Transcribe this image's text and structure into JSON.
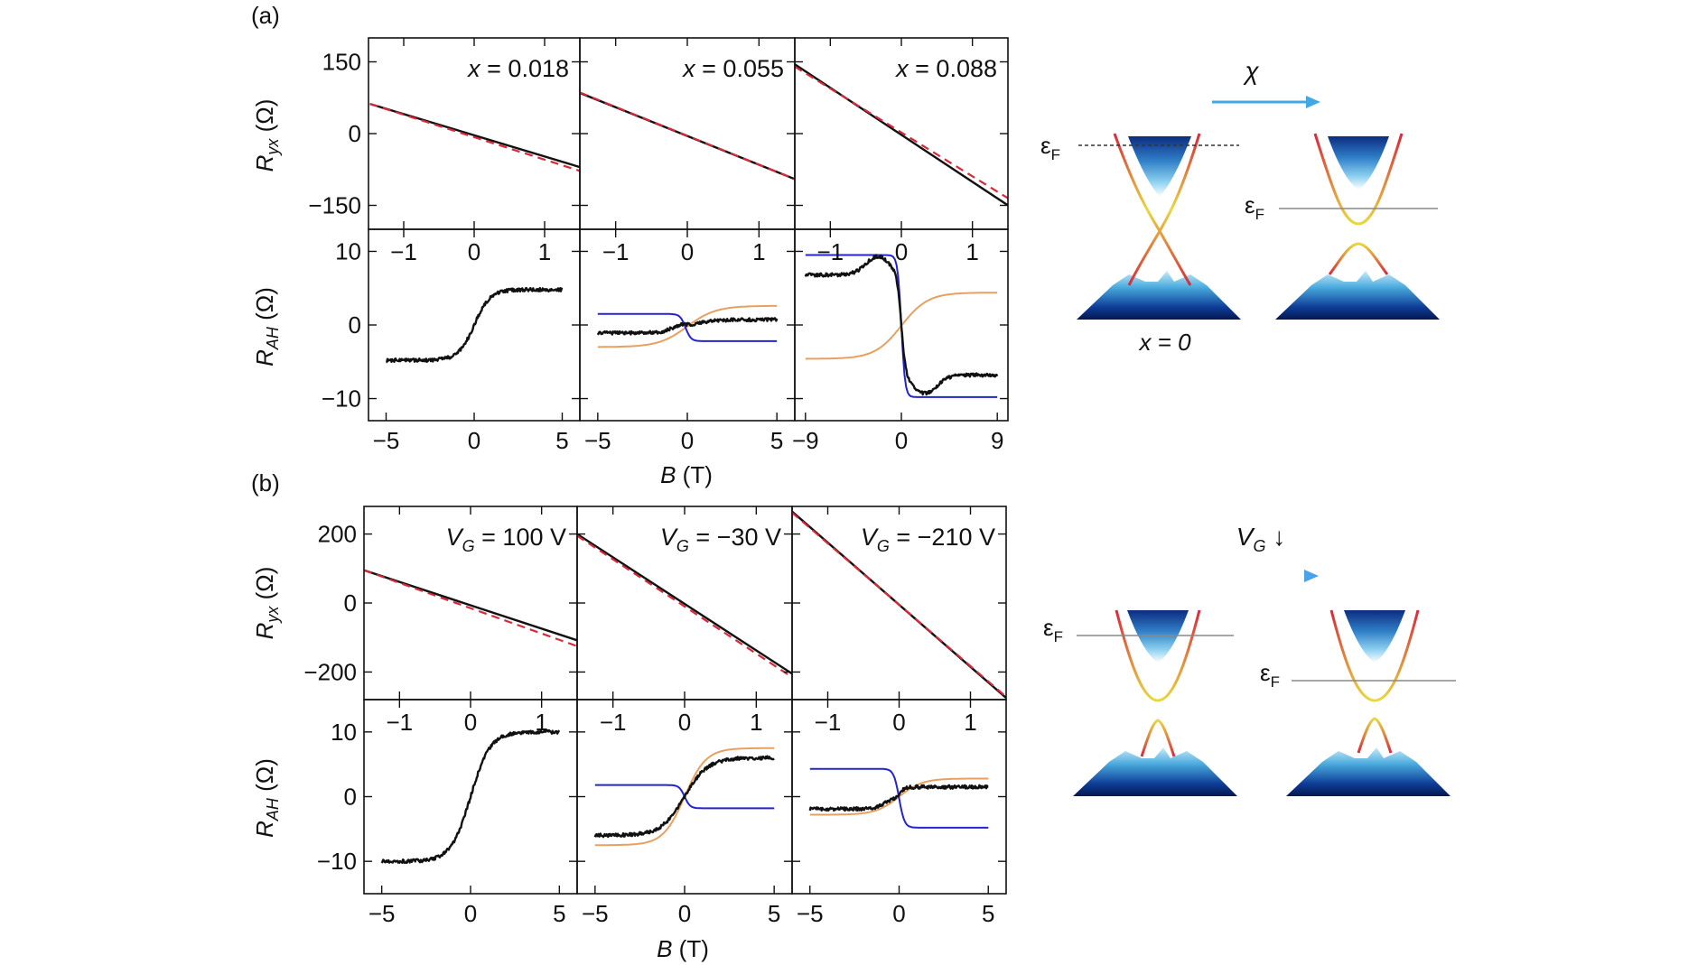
{
  "colors": {
    "data": "#111111",
    "fit_red": "#d62a3a",
    "orange": "#e8a060",
    "blue": "#2424d0",
    "arrow_a": "#41a8e4",
    "arrow_b_start": "#2bc0a0",
    "arrow_b_end": "#4aa2e8",
    "band_red": "#d8283c",
    "band_yellow": "#e8d840",
    "band_blue_dark": "#0b2a7a",
    "band_blue_light": "#bfe6f7"
  },
  "figure": {
    "panel_a_label": "(a)",
    "panel_b_label": "(b)",
    "ylabel_ryx": {
      "main": "R",
      "sub": "yx",
      "unit": " (Ω)"
    },
    "ylabel_rah": {
      "main": "R",
      "sub": "AH",
      "unit": " (Ω)"
    },
    "xlabel": {
      "main": "B",
      "unit": " (T)"
    },
    "arrow_a_label": "χ",
    "arrow_b_label": {
      "main": "V",
      "sub": "G",
      "arrow": " ↓"
    },
    "ef_main": "ε",
    "ef_sub": "F",
    "diagram_x0_label": "x = 0"
  },
  "chart_data": [
    {
      "id": "a1-top",
      "type": "line",
      "group": "a",
      "position": "top",
      "annotation": {
        "var": "x",
        "text": " = 0.018"
      },
      "xlim": [
        -1.5,
        1.5
      ],
      "ylim": [
        -200,
        200
      ],
      "xticks": [
        -1,
        0,
        1
      ],
      "yticks": [
        -150,
        0,
        150
      ],
      "ytick_labels": [
        "−150",
        "0",
        "150"
      ],
      "series": [
        {
          "style": "data",
          "points": [
            [
              -1.48,
              62
            ],
            [
              1.5,
              -70
            ]
          ]
        },
        {
          "style": "fit_dashed",
          "points": [
            [
              -1.48,
              62
            ],
            [
              1.5,
              -78
            ]
          ]
        }
      ]
    },
    {
      "id": "a2-top",
      "type": "line",
      "group": "a",
      "position": "top",
      "annotation": {
        "var": "x",
        "text": " = 0.055"
      },
      "xlim": [
        -1.5,
        1.5
      ],
      "ylim": [
        -200,
        200
      ],
      "xticks": [
        -1,
        0,
        1
      ],
      "yticks": [
        -150,
        0,
        150
      ],
      "series": [
        {
          "style": "data",
          "points": [
            [
              -1.5,
              85
            ],
            [
              1.5,
              -95
            ]
          ]
        },
        {
          "style": "fit_dashed",
          "points": [
            [
              -1.5,
              86
            ],
            [
              1.5,
              -95
            ]
          ]
        }
      ]
    },
    {
      "id": "a3-top",
      "type": "line",
      "group": "a",
      "position": "top",
      "annotation": {
        "var": "x",
        "text": " = 0.088"
      },
      "xlim": [
        -1.5,
        1.5
      ],
      "ylim": [
        -200,
        200
      ],
      "xticks": [
        -1,
        0,
        1
      ],
      "yticks": [
        -150,
        0,
        150
      ],
      "series": [
        {
          "style": "data",
          "points": [
            [
              -1.5,
              145
            ],
            [
              1.5,
              -150
            ]
          ]
        },
        {
          "style": "fit_dashed",
          "points": [
            [
              -1.5,
              140
            ],
            [
              1.5,
              -135
            ]
          ]
        }
      ]
    },
    {
      "id": "a1-bottom",
      "type": "line",
      "group": "a",
      "position": "bottom",
      "xlim": [
        -6,
        6
      ],
      "ylim": [
        -13,
        13
      ],
      "xticks": [
        -5,
        0,
        5
      ],
      "xtick_labels": [
        "−5",
        "0",
        "5"
      ],
      "top_xticks": [
        -1,
        0,
        1
      ],
      "top_xtick_labels": [
        "−1",
        "0",
        "1"
      ],
      "top_xlim": [
        -1.5,
        1.5
      ],
      "yticks": [
        -10,
        0,
        10
      ],
      "ytick_labels": [
        "−10",
        "0",
        "10"
      ],
      "series": [
        {
          "style": "data_noisy",
          "curve": "tanh",
          "amp": 4.8,
          "center": 0,
          "width": 0.9,
          "offset": 0,
          "range": [
            -5,
            5
          ]
        }
      ]
    },
    {
      "id": "a2-bottom",
      "type": "line",
      "group": "a",
      "position": "bottom",
      "xlim": [
        -6,
        6
      ],
      "ylim": [
        -13,
        13
      ],
      "xticks": [
        -5,
        0,
        5
      ],
      "xtick_labels": [
        "−5",
        "0",
        "5"
      ],
      "top_xticks": [
        -1,
        0,
        1
      ],
      "top_xtick_labels": [
        "−1",
        "0",
        "1"
      ],
      "top_xlim": [
        -1.5,
        1.5
      ],
      "yticks": [
        -10,
        0,
        10
      ],
      "series": [
        {
          "style": "orange",
          "curve": "tanh",
          "amp": 2.8,
          "center": 0,
          "width": 1.6,
          "offset": -0.2,
          "range": [
            -5,
            5
          ]
        },
        {
          "style": "blue",
          "curve": "step",
          "left": 1.5,
          "right": -2.2,
          "center": -0.1,
          "width": 0.3,
          "range": [
            -5,
            5
          ]
        },
        {
          "style": "data_noisy",
          "curve": "tanh_bump",
          "amp": 0.9,
          "center": 0,
          "width": 1.2,
          "offset": -0.2,
          "bump": 0.5,
          "range": [
            -5,
            5
          ]
        }
      ]
    },
    {
      "id": "a3-bottom",
      "type": "line",
      "group": "a",
      "position": "bottom",
      "xlim": [
        -10,
        10
      ],
      "ylim": [
        -13,
        13
      ],
      "xticks": [
        -9,
        0,
        9
      ],
      "xtick_labels": [
        "−9",
        "0",
        "9"
      ],
      "top_xticks": [
        -1,
        0,
        1
      ],
      "top_xtick_labels": [
        "−1",
        "0",
        "1"
      ],
      "top_xlim": [
        -1.5,
        1.5
      ],
      "yticks": [
        -10,
        0,
        10
      ],
      "series": [
        {
          "style": "orange",
          "curve": "tanh",
          "amp": 4.5,
          "center": 0,
          "width": 2.5,
          "offset": -0.1,
          "range": [
            -9,
            9
          ]
        },
        {
          "style": "blue",
          "curve": "step",
          "left": 9.5,
          "right": -9.8,
          "center": 0,
          "width": 0.35,
          "range": [
            -9,
            9
          ]
        },
        {
          "style": "data_noisy",
          "curve": "ahe_bump",
          "amp": 6.8,
          "center": 0,
          "width": 0.4,
          "offset": 0,
          "bump": 2.5,
          "range": [
            -9,
            9
          ]
        }
      ]
    },
    {
      "id": "b1-top",
      "type": "line",
      "group": "b",
      "position": "top",
      "annotation": {
        "var": "V",
        "sub": "G",
        "text": " = 100 V"
      },
      "xlim": [
        -1.5,
        1.5
      ],
      "ylim": [
        -280,
        280
      ],
      "xticks": [
        -1,
        0,
        1
      ],
      "yticks": [
        -200,
        0,
        200
      ],
      "ytick_labels": [
        "−200",
        "0",
        "200"
      ],
      "series": [
        {
          "style": "data",
          "points": [
            [
              -1.5,
              95
            ],
            [
              1.5,
              -108
            ]
          ]
        },
        {
          "style": "fit_dashed",
          "points": [
            [
              -1.5,
              95
            ],
            [
              1.5,
              -125
            ]
          ]
        }
      ]
    },
    {
      "id": "b2-top",
      "type": "line",
      "group": "b",
      "position": "top",
      "annotation": {
        "var": "V",
        "sub": "G",
        "text": " = −30 V"
      },
      "xlim": [
        -1.5,
        1.5
      ],
      "ylim": [
        -280,
        280
      ],
      "xticks": [
        -1,
        0,
        1
      ],
      "yticks": [
        -200,
        0,
        200
      ],
      "series": [
        {
          "style": "data",
          "points": [
            [
              -1.5,
              200
            ],
            [
              1.5,
              -205
            ]
          ]
        },
        {
          "style": "fit_dashed",
          "points": [
            [
              -1.5,
              195
            ],
            [
              1.5,
              -215
            ]
          ]
        }
      ]
    },
    {
      "id": "b3-top",
      "type": "line",
      "group": "b",
      "position": "top",
      "annotation": {
        "var": "V",
        "sub": "G",
        "text": " = −210 V"
      },
      "xlim": [
        -1.5,
        1.5
      ],
      "ylim": [
        -280,
        280
      ],
      "xticks": [
        -1,
        0,
        1
      ],
      "yticks": [
        -200,
        0,
        200
      ],
      "series": [
        {
          "style": "data",
          "points": [
            [
              -1.5,
              265
            ],
            [
              1.5,
              -275
            ]
          ]
        },
        {
          "style": "fit_dashed",
          "points": [
            [
              -1.5,
              262
            ],
            [
              1.5,
              -272
            ]
          ]
        }
      ]
    },
    {
      "id": "b1-bottom",
      "type": "line",
      "group": "b",
      "position": "bottom",
      "xlim": [
        -6,
        6
      ],
      "ylim": [
        -15,
        15
      ],
      "xticks": [
        -5,
        0,
        5
      ],
      "xtick_labels": [
        "−5",
        "0",
        "5"
      ],
      "top_xticks": [
        -1,
        0,
        1
      ],
      "top_xtick_labels": [
        "−1",
        "0",
        "1"
      ],
      "top_xlim": [
        -1.5,
        1.5
      ],
      "yticks": [
        -10,
        0,
        10
      ],
      "ytick_labels": [
        "−10",
        "0",
        "10"
      ],
      "series": [
        {
          "style": "data_noisy",
          "curve": "tanh",
          "amp": 10,
          "center": 0,
          "width": 1.1,
          "offset": 0,
          "range": [
            -5,
            5
          ]
        }
      ]
    },
    {
      "id": "b2-bottom",
      "type": "line",
      "group": "b",
      "position": "bottom",
      "xlim": [
        -6,
        6
      ],
      "ylim": [
        -15,
        15
      ],
      "xticks": [
        -5,
        0,
        5
      ],
      "xtick_labels": [
        "−5",
        "0",
        "5"
      ],
      "top_xticks": [
        -1,
        0,
        1
      ],
      "top_xtick_labels": [
        "−1",
        "0",
        "1"
      ],
      "top_xlim": [
        -1.5,
        1.5
      ],
      "yticks": [
        -10,
        0,
        10
      ],
      "series": [
        {
          "style": "orange",
          "curve": "tanh",
          "amp": 7.5,
          "center": 0,
          "width": 1.2,
          "offset": 0,
          "range": [
            -5,
            5
          ]
        },
        {
          "style": "blue",
          "curve": "step",
          "left": 1.8,
          "right": -1.8,
          "center": 0,
          "width": 0.3,
          "range": [
            -5,
            5
          ]
        },
        {
          "style": "data_noisy",
          "curve": "tanh",
          "amp": 6,
          "center": 0,
          "width": 1.3,
          "offset": 0,
          "range": [
            -5,
            5
          ]
        }
      ]
    },
    {
      "id": "b3-bottom",
      "type": "line",
      "group": "b",
      "position": "bottom",
      "xlim": [
        -6,
        6
      ],
      "ylim": [
        -15,
        15
      ],
      "xticks": [
        -5,
        0,
        5
      ],
      "xtick_labels": [
        "−5",
        "0",
        "5"
      ],
      "top_xticks": [
        -1,
        0,
        1
      ],
      "top_xtick_labels": [
        "−1",
        "0",
        "1"
      ],
      "top_xlim": [
        -1.5,
        1.5
      ],
      "yticks": [
        -10,
        0,
        10
      ],
      "series": [
        {
          "style": "orange",
          "curve": "tanh",
          "amp": 2.8,
          "center": 0,
          "width": 1.3,
          "offset": 0,
          "range": [
            -5,
            5
          ]
        },
        {
          "style": "blue",
          "curve": "step",
          "left": 4.3,
          "right": -4.8,
          "center": 0,
          "width": 0.3,
          "range": [
            -5,
            5
          ]
        },
        {
          "style": "data_noisy",
          "curve": "tanh_bump",
          "amp": 1.7,
          "center": 0,
          "width": 0.35,
          "offset": -0.2,
          "bump": 1.2,
          "range": [
            -5,
            5
          ]
        }
      ]
    }
  ]
}
